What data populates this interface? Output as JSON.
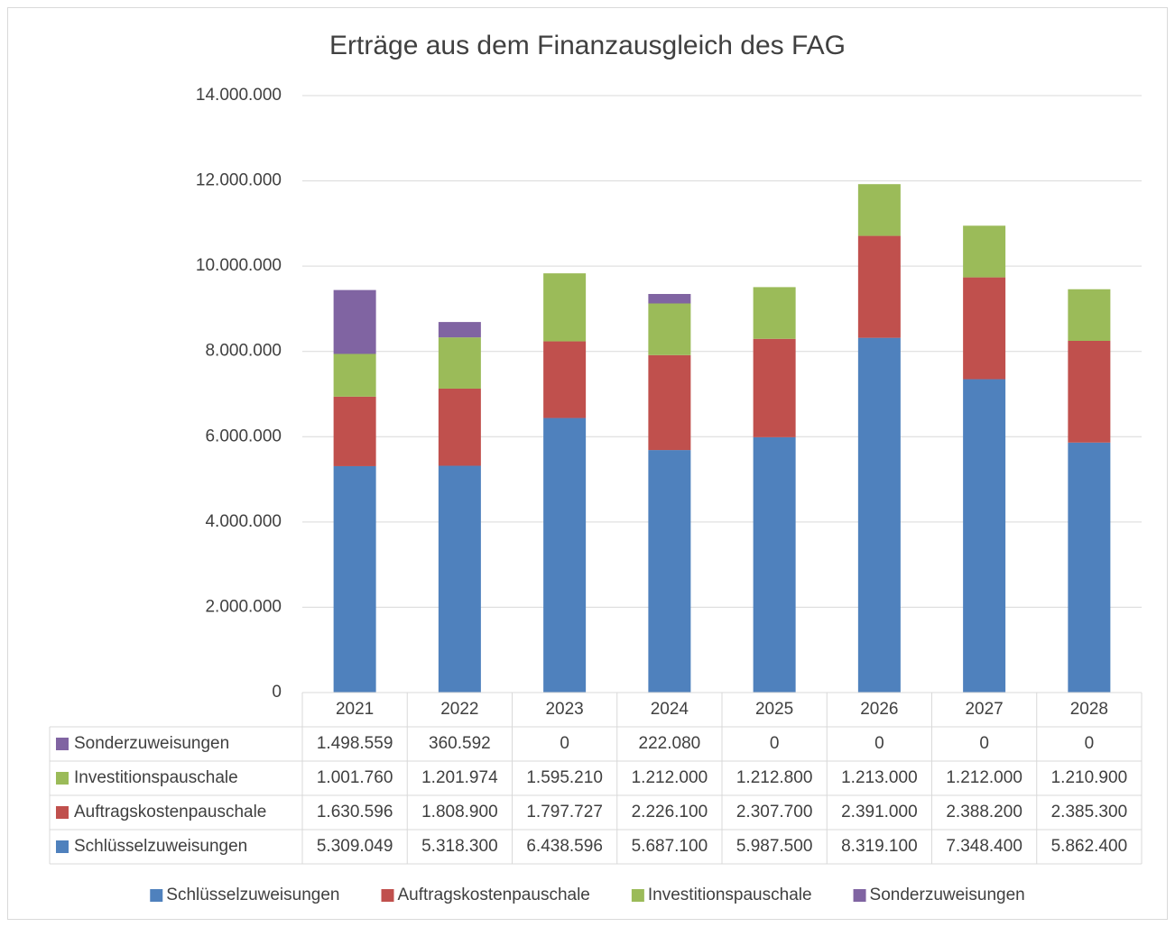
{
  "chart_data": {
    "type": "stacked_bar",
    "title": "Erträge aus dem Finanzausgleich des FAG",
    "categories": [
      "2021",
      "2022",
      "2023",
      "2024",
      "2025",
      "2026",
      "2027",
      "2028"
    ],
    "series": [
      {
        "name": "Schlüsselzuweisungen",
        "color": "#4f81bd",
        "values": [
          5309049,
          5318300,
          6438596,
          5687100,
          5987500,
          8319100,
          7348400,
          5862400
        ],
        "value_labels": [
          "5.309.049",
          "5.318.300",
          "6.438.596",
          "5.687.100",
          "5.987.500",
          "8.319.100",
          "7.348.400",
          "5.862.400"
        ]
      },
      {
        "name": "Auftragskostenpauschale",
        "color": "#c0504d",
        "values": [
          1630596,
          1808900,
          1797727,
          2226100,
          2307700,
          2391000,
          2388200,
          2385300
        ],
        "value_labels": [
          "1.630.596",
          "1.808.900",
          "1.797.727",
          "2.226.100",
          "2.307.700",
          "2.391.000",
          "2.388.200",
          "2.385.300"
        ]
      },
      {
        "name": "Investitionspauschale",
        "color": "#9bbb59",
        "values": [
          1001760,
          1201974,
          1595210,
          1212000,
          1212800,
          1213000,
          1212000,
          1210900
        ],
        "value_labels": [
          "1.001.760",
          "1.201.974",
          "1.595.210",
          "1.212.000",
          "1.212.800",
          "1.213.000",
          "1.212.000",
          "1.210.900"
        ]
      },
      {
        "name": "Sonderzuweisungen",
        "color": "#8064a2",
        "values": [
          1498559,
          360592,
          0,
          222080,
          0,
          0,
          0,
          0
        ],
        "value_labels": [
          "1.498.559",
          "360.592",
          "0",
          "222.080",
          "0",
          "0",
          "0",
          "0"
        ]
      }
    ],
    "ylim": [
      0,
      14000000
    ],
    "yticks": [
      0,
      {
        "value": 2000000,
        "label": "2.000.000"
      },
      {
        "value": 4000000,
        "label": "4.000.000"
      },
      {
        "value": 6000000,
        "label": "6.000.000"
      },
      {
        "value": 8000000,
        "label": "8.000.000"
      },
      {
        "value": 10000000,
        "label": "10.000.000"
      },
      {
        "value": 12000000,
        "label": "12.000.000"
      },
      {
        "value": 14000000,
        "label": "14.000.000"
      }
    ],
    "grid": true,
    "legend": "bottom"
  }
}
